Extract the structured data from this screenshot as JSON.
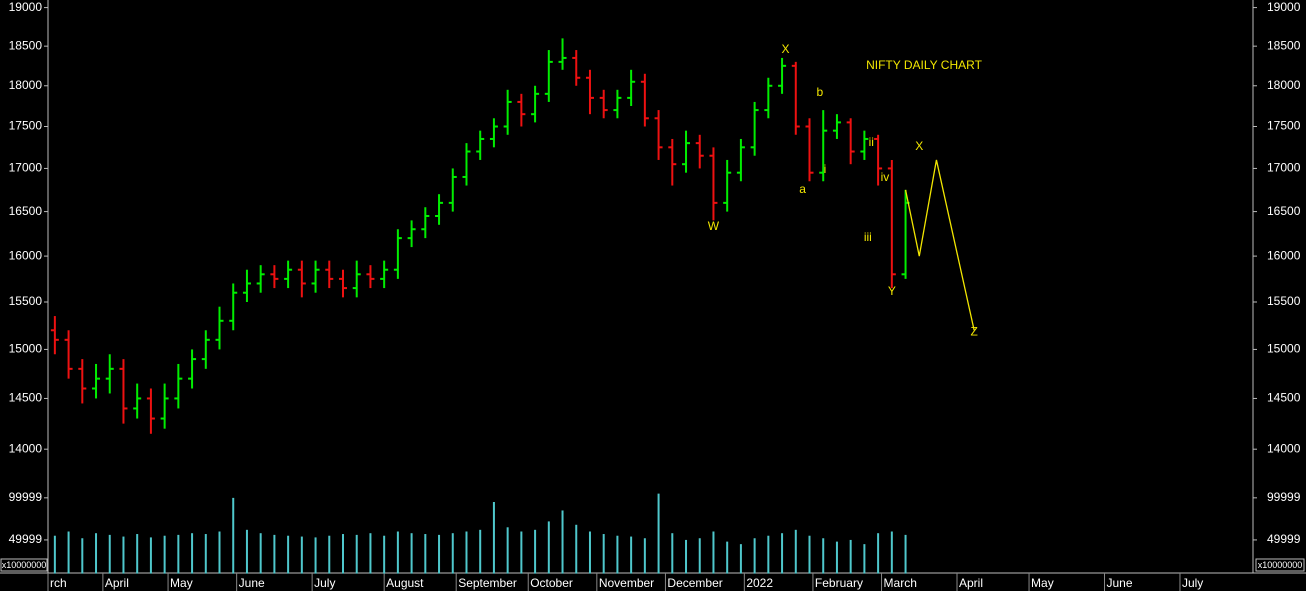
{
  "chart_data": {
    "type": "ohlc",
    "title": "NIFTY DAILY CHART",
    "log_scale": true,
    "up_color": "#00ee00",
    "down_color": "#ee1111",
    "x": [
      2,
      6,
      10,
      14,
      18,
      22,
      26,
      30,
      34,
      38,
      42,
      46,
      50,
      54,
      58,
      62,
      66,
      70,
      74,
      78,
      82,
      86,
      90,
      94,
      98,
      102,
      106,
      110,
      114,
      118,
      122,
      126,
      130,
      134,
      138,
      142,
      146,
      150,
      154,
      158,
      162,
      166,
      170,
      174,
      178,
      182,
      186,
      190,
      194,
      198,
      202,
      206,
      210,
      214,
      218,
      222,
      226,
      230,
      234,
      238,
      242,
      246,
      250
    ],
    "open": [
      15200,
      15100,
      14800,
      14600,
      14700,
      14800,
      14400,
      14500,
      14300,
      14500,
      14700,
      14900,
      15100,
      15300,
      15600,
      15700,
      15800,
      15750,
      15850,
      15700,
      15850,
      15750,
      15650,
      15800,
      15750,
      15850,
      16200,
      16300,
      16450,
      16600,
      16900,
      17200,
      17350,
      17500,
      17800,
      17650,
      17900,
      18300,
      18350,
      18100,
      17850,
      17700,
      17850,
      18050,
      17600,
      17250,
      17050,
      17300,
      17150,
      16600,
      16950,
      17250,
      17700,
      18000,
      18250,
      17500,
      16950,
      17450,
      17550,
      17200,
      17350,
      17000,
      15800
    ],
    "high": [
      15350,
      15200,
      14900,
      14850,
      14950,
      14900,
      14650,
      14600,
      14650,
      14850,
      15000,
      15200,
      15450,
      15700,
      15850,
      15900,
      15900,
      15950,
      15950,
      15950,
      15950,
      15850,
      15950,
      15900,
      15950,
      16300,
      16400,
      16550,
      16700,
      17000,
      17300,
      17450,
      17600,
      17950,
      17900,
      18000,
      18450,
      18600,
      18450,
      18200,
      17950,
      17950,
      18200,
      18150,
      17700,
      17350,
      17450,
      17400,
      17250,
      17100,
      17350,
      17800,
      18100,
      18350,
      18300,
      17600,
      17700,
      17650,
      17600,
      17450,
      17400,
      17100,
      16750
    ],
    "low": [
      14950,
      14700,
      14450,
      14500,
      14550,
      14250,
      14300,
      14150,
      14200,
      14400,
      14600,
      14800,
      15000,
      15200,
      15500,
      15600,
      15650,
      15650,
      15550,
      15600,
      15650,
      15550,
      15550,
      15650,
      15650,
      15750,
      16100,
      16200,
      16350,
      16500,
      16800,
      17100,
      17250,
      17400,
      17500,
      17550,
      17800,
      18200,
      18000,
      17650,
      17600,
      17600,
      17750,
      17500,
      17100,
      16800,
      16950,
      17000,
      16400,
      16500,
      16850,
      17150,
      17600,
      17900,
      17400,
      16850,
      16850,
      17350,
      17050,
      17100,
      16800,
      15650,
      15750
    ],
    "close": [
      15100,
      14800,
      14600,
      14700,
      14800,
      14400,
      14500,
      14300,
      14500,
      14700,
      14900,
      15100,
      15300,
      15600,
      15700,
      15800,
      15750,
      15850,
      15700,
      15850,
      15750,
      15650,
      15800,
      15750,
      15850,
      16200,
      16300,
      16450,
      16600,
      16900,
      17200,
      17350,
      17500,
      17800,
      17650,
      17900,
      18300,
      18350,
      18100,
      17850,
      17700,
      17850,
      18050,
      17600,
      17250,
      17050,
      17300,
      17150,
      16600,
      16950,
      17250,
      17700,
      18000,
      18250,
      17500,
      16950,
      17450,
      17550,
      17200,
      17350,
      17000,
      15800,
      16600
    ],
    "ylim": [
      13800,
      19100
    ],
    "yticks": [
      14000,
      14500,
      15000,
      15500,
      16000,
      16500,
      17000,
      17500,
      18000,
      18500,
      19000
    ],
    "xlim": [
      0,
      351
    ],
    "xticks": [
      {
        "value": 0,
        "label": "rch"
      },
      {
        "value": 16,
        "label": "April"
      },
      {
        "value": 35,
        "label": "May"
      },
      {
        "value": 55,
        "label": "June"
      },
      {
        "value": 77,
        "label": "July"
      },
      {
        "value": 98,
        "label": "August"
      },
      {
        "value": 119,
        "label": "September"
      },
      {
        "value": 140,
        "label": "October"
      },
      {
        "value": 160,
        "label": "November"
      },
      {
        "value": 180,
        "label": "December"
      },
      {
        "value": 203,
        "label": "2022"
      },
      {
        "value": 223,
        "label": "February"
      },
      {
        "value": 243,
        "label": "March"
      },
      {
        "value": 265,
        "label": "April"
      },
      {
        "value": 286,
        "label": "May"
      },
      {
        "value": 308,
        "label": "June"
      },
      {
        "value": 330,
        "label": "July"
      }
    ],
    "projection": {
      "color": "#f2e600",
      "x": [
        250,
        254,
        259,
        270
      ],
      "values": [
        16750,
        16000,
        17100,
        15200
      ]
    },
    "annotations": [
      {
        "text": "W",
        "x": 194,
        "y": 16327
      },
      {
        "text": "X",
        "x": 215,
        "y": 18455
      },
      {
        "text": "a",
        "x": 220,
        "y": 16750
      },
      {
        "text": "b",
        "x": 225,
        "y": 17913
      },
      {
        "text": "i",
        "x": 226.5,
        "y": 16984
      },
      {
        "text": "ii",
        "x": 240,
        "y": 17303
      },
      {
        "text": "iii",
        "x": 239,
        "y": 16201
      },
      {
        "text": "iv",
        "x": 244,
        "y": 16891
      },
      {
        "text": "Y",
        "x": 246,
        "y": 15607
      },
      {
        "text": "X",
        "x": 254,
        "y": 17255
      },
      {
        "text": "Z",
        "x": 270,
        "y": 15181
      }
    ],
    "volume": {
      "color": "#4fc8cc",
      "unit_label": "x10000000",
      "ylim": [
        10000,
        120000
      ],
      "yticks": [
        49999,
        99999
      ],
      "values": [
        55000,
        60000,
        52000,
        58000,
        56000,
        54000,
        57000,
        53000,
        55000,
        56000,
        58000,
        57000,
        60000,
        100000,
        62000,
        58000,
        56000,
        55000,
        54000,
        53000,
        55000,
        57000,
        56000,
        58000,
        55000,
        60000,
        58000,
        57000,
        56000,
        58000,
        60000,
        62000,
        95000,
        65000,
        60000,
        62000,
        72000,
        85000,
        68000,
        60000,
        57000,
        55000,
        54000,
        52000,
        105000,
        58000,
        50000,
        52000,
        60000,
        48000,
        45000,
        52000,
        55000,
        58000,
        62000,
        55000,
        52000,
        48000,
        50000,
        45000,
        58000,
        60000,
        56000
      ]
    }
  }
}
